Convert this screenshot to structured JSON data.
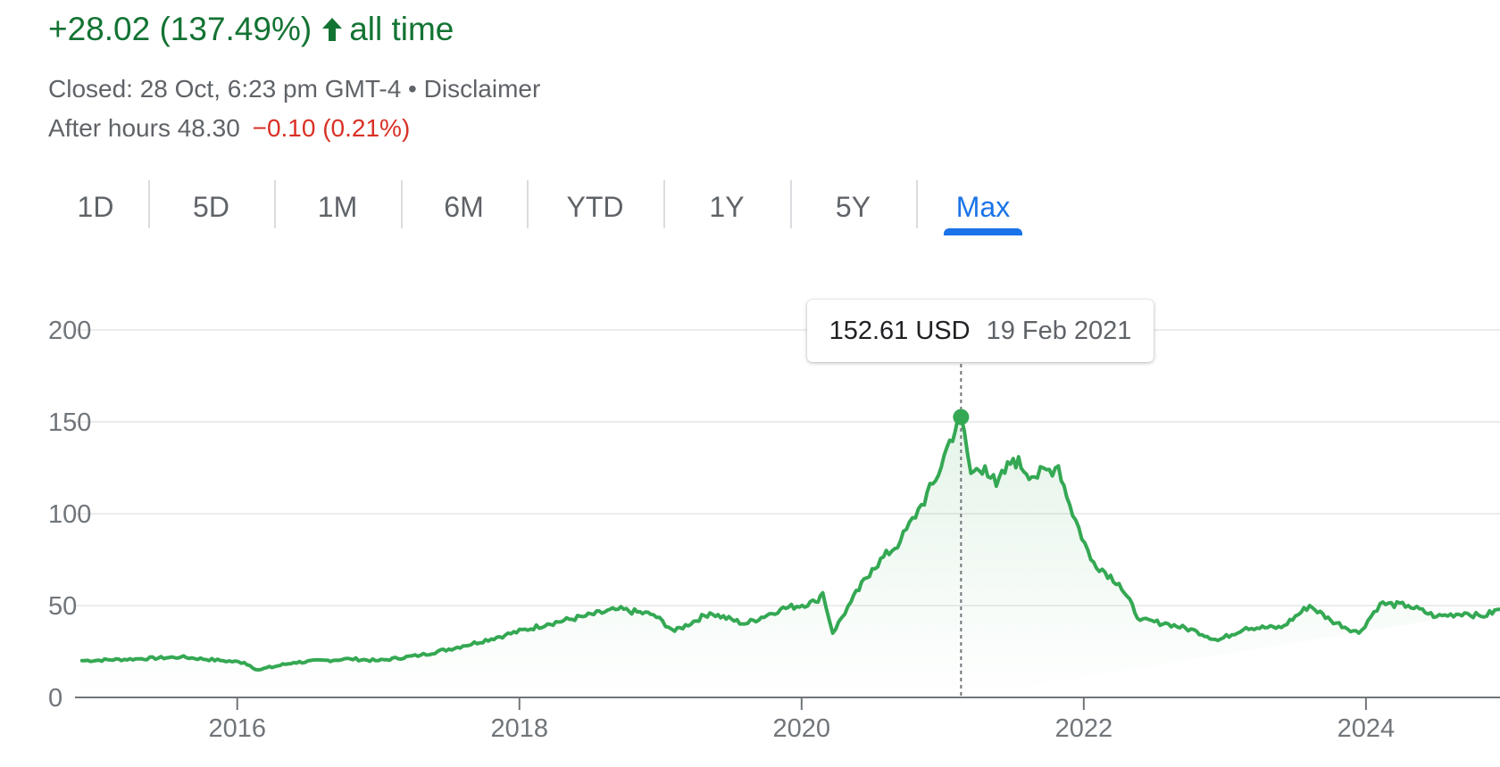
{
  "header": {
    "change": "+28.02 (137.49%)",
    "arrow_icon": "arrow-up-icon",
    "period_label": "all time",
    "closed_text": "Closed: 28 Oct, 6:23 pm GMT-4 • Disclaimer",
    "after_hours_label": "After hours 48.30",
    "after_hours_change": "−0.10 (0.21%)",
    "colors": {
      "up": "#137333",
      "down": "#d93025",
      "accent": "#1a73e8",
      "line": "#34a853"
    }
  },
  "range_tabs": [
    {
      "label": "1D"
    },
    {
      "label": "5D"
    },
    {
      "label": "1M"
    },
    {
      "label": "6M"
    },
    {
      "label": "YTD"
    },
    {
      "label": "1Y"
    },
    {
      "label": "5Y"
    },
    {
      "label": "Max",
      "selected": true
    }
  ],
  "tooltip": {
    "price": "152.61 USD",
    "date": "19 Feb 2021"
  },
  "chart_data": {
    "type": "area",
    "title": "",
    "xlabel": "",
    "ylabel": "",
    "ylim": [
      0,
      200
    ],
    "xlim": [
      2014.85,
      2024.95
    ],
    "yticks": [
      "0",
      "50",
      "100",
      "150",
      "200"
    ],
    "xticks": [
      "2016",
      "2018",
      "2020",
      "2022",
      "2024"
    ],
    "grid": true,
    "series": [
      {
        "color": "#34a853",
        "points": [
          [
            2014.9,
            20
          ],
          [
            2015.3,
            21
          ],
          [
            2015.6,
            22
          ],
          [
            2015.9,
            20
          ],
          [
            2016.05,
            19
          ],
          [
            2016.15,
            15
          ],
          [
            2016.4,
            19
          ],
          [
            2016.8,
            21
          ],
          [
            2017.0,
            20
          ],
          [
            2017.3,
            23
          ],
          [
            2017.6,
            28
          ],
          [
            2017.9,
            34
          ],
          [
            2018.2,
            40
          ],
          [
            2018.45,
            44
          ],
          [
            2018.7,
            48
          ],
          [
            2018.95,
            45
          ],
          [
            2019.1,
            36
          ],
          [
            2019.35,
            46
          ],
          [
            2019.6,
            40
          ],
          [
            2019.85,
            48
          ],
          [
            2020.1,
            52
          ],
          [
            2020.15,
            57
          ],
          [
            2020.22,
            35
          ],
          [
            2020.35,
            52
          ],
          [
            2020.5,
            70
          ],
          [
            2020.7,
            85
          ],
          [
            2020.85,
            105
          ],
          [
            2020.95,
            118
          ],
          [
            2021.05,
            140
          ],
          [
            2021.13,
            152.61
          ],
          [
            2021.2,
            122
          ],
          [
            2021.3,
            126
          ],
          [
            2021.38,
            115
          ],
          [
            2021.5,
            130
          ],
          [
            2021.65,
            120
          ],
          [
            2021.82,
            126
          ],
          [
            2021.9,
            105
          ],
          [
            2022.05,
            75
          ],
          [
            2022.25,
            62
          ],
          [
            2022.4,
            42
          ],
          [
            2022.6,
            40
          ],
          [
            2022.8,
            36
          ],
          [
            2022.95,
            31
          ],
          [
            2023.15,
            38
          ],
          [
            2023.4,
            38
          ],
          [
            2023.6,
            50
          ],
          [
            2023.75,
            42
          ],
          [
            2023.95,
            35
          ],
          [
            2024.1,
            51
          ],
          [
            2024.3,
            50
          ],
          [
            2024.5,
            44
          ],
          [
            2024.7,
            46
          ],
          [
            2024.82,
            44
          ],
          [
            2024.95,
            48
          ]
        ]
      }
    ],
    "highlight": {
      "x": 2021.13,
      "y": 152.61
    }
  }
}
